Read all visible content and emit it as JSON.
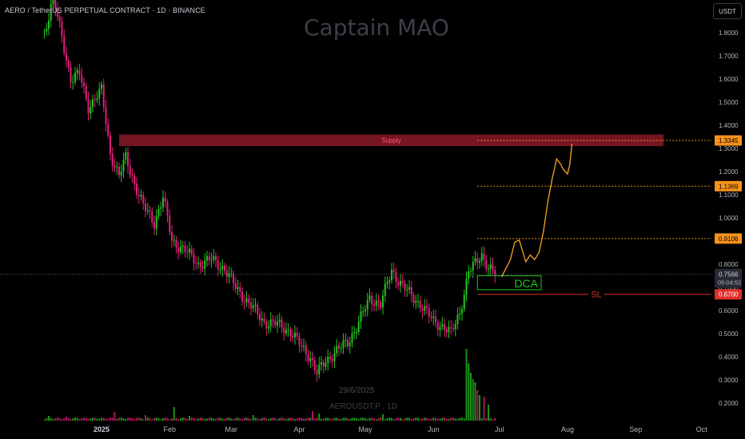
{
  "header": {
    "symbol_title": "AERO / TetherUS PERPETUAL CONTRACT · 1D · BINANCE",
    "watermark": "Captain MAO",
    "currency": "USDT"
  },
  "overlay": {
    "date_text": "29/6/2025",
    "ticker_text": "AEROUSDT.P , 1D"
  },
  "colors": {
    "background": "#000000",
    "up": "#22c41e",
    "down": "#e0207a",
    "supply_zone": "#8a1a28",
    "supply_text": "#ff5a78",
    "target_line": "#f7931a",
    "projection": "#f5a623",
    "stop_loss": "#e0302a",
    "dca": "#22c41e",
    "price_tag": "#262a33"
  },
  "chart_data": {
    "type": "candlestick",
    "symbol": "AERO / TetherUS PERPETUAL CONTRACT",
    "timeframe": "1D",
    "exchange": "BINANCE",
    "y_ticks": [
      1.8,
      1.7,
      1.6,
      1.5,
      1.4,
      1.3,
      1.2,
      1.1,
      1.0,
      0.9,
      0.8,
      0.7,
      0.6,
      0.5,
      0.4,
      0.3,
      0.2
    ],
    "y_tick_labels": [
      "1.8000",
      "1.7000",
      "1.6000",
      "1.5000",
      "1.4000",
      "1.3000",
      "1.2000",
      "1.1000",
      "1.0000",
      "0.9000",
      "0.8000",
      "0.7000",
      "0.6000",
      "0.5000",
      "0.4000",
      "0.3000",
      "0.2000"
    ],
    "x_labels": [
      {
        "label": "2025",
        "date": "2025-01-01",
        "bold": true
      },
      {
        "label": "Feb",
        "date": "2025-02-01"
      },
      {
        "label": "Mar",
        "date": "2025-03-01"
      },
      {
        "label": "Apr",
        "date": "2025-04-01"
      },
      {
        "label": "May",
        "date": "2025-05-01"
      },
      {
        "label": "Jun",
        "date": "2025-06-01"
      },
      {
        "label": "Jul",
        "date": "2025-07-01"
      },
      {
        "label": "Aug",
        "date": "2025-08-01"
      },
      {
        "label": "Sep",
        "date": "2025-09-01"
      },
      {
        "label": "Oct",
        "date": "2025-10-01"
      }
    ],
    "price_path": [
      [
        "2024-12-06",
        1.8
      ],
      [
        "2024-12-10",
        1.95
      ],
      [
        "2024-12-14",
        1.78
      ],
      [
        "2024-12-18",
        1.6
      ],
      [
        "2024-12-22",
        1.62
      ],
      [
        "2024-12-26",
        1.48
      ],
      [
        "2025-01-01",
        1.55
      ],
      [
        "2025-01-05",
        1.28
      ],
      [
        "2025-01-09",
        1.18
      ],
      [
        "2025-01-12",
        1.26
      ],
      [
        "2025-01-16",
        1.15
      ],
      [
        "2025-01-20",
        1.05
      ],
      [
        "2025-01-25",
        0.98
      ],
      [
        "2025-01-29",
        1.09
      ],
      [
        "2025-02-02",
        0.9
      ],
      [
        "2025-02-08",
        0.86
      ],
      [
        "2025-02-14",
        0.8
      ],
      [
        "2025-02-20",
        0.82
      ],
      [
        "2025-02-26",
        0.78
      ],
      [
        "2025-03-03",
        0.7
      ],
      [
        "2025-03-10",
        0.62
      ],
      [
        "2025-03-16",
        0.55
      ],
      [
        "2025-03-22",
        0.54
      ],
      [
        "2025-03-28",
        0.51
      ],
      [
        "2025-04-02",
        0.44
      ],
      [
        "2025-04-06",
        0.4
      ],
      [
        "2025-04-09",
        0.33
      ],
      [
        "2025-04-13",
        0.38
      ],
      [
        "2025-04-18",
        0.43
      ],
      [
        "2025-04-23",
        0.46
      ],
      [
        "2025-04-28",
        0.55
      ],
      [
        "2025-05-03",
        0.65
      ],
      [
        "2025-05-08",
        0.63
      ],
      [
        "2025-05-13",
        0.77
      ],
      [
        "2025-05-17",
        0.72
      ],
      [
        "2025-05-22",
        0.66
      ],
      [
        "2025-05-27",
        0.62
      ],
      [
        "2025-06-01",
        0.55
      ],
      [
        "2025-06-06",
        0.53
      ],
      [
        "2025-06-09",
        0.5
      ],
      [
        "2025-06-13",
        0.59
      ],
      [
        "2025-06-17",
        0.77
      ],
      [
        "2025-06-20",
        0.8
      ],
      [
        "2025-06-23",
        0.84
      ],
      [
        "2025-06-26",
        0.79
      ],
      [
        "2025-06-29",
        0.7566
      ]
    ],
    "volume_bars": [
      [
        "2024-12-08",
        0.3
      ],
      [
        "2024-12-16",
        0.25
      ],
      [
        "2025-01-07",
        0.55
      ],
      [
        "2025-01-21",
        0.35
      ],
      [
        "2025-02-03",
        0.85
      ],
      [
        "2025-02-10",
        0.3
      ],
      [
        "2025-03-11",
        0.35
      ],
      [
        "2025-04-07",
        0.6
      ],
      [
        "2025-04-10",
        0.45
      ],
      [
        "2025-05-09",
        0.4
      ],
      [
        "2025-06-16",
        4.5
      ],
      [
        "2025-06-17",
        3.6
      ],
      [
        "2025-06-18",
        3.0
      ],
      [
        "2025-06-19",
        2.6
      ],
      [
        "2025-06-20",
        2.4
      ],
      [
        "2025-06-21",
        1.9
      ],
      [
        "2025-06-22",
        1.6
      ],
      [
        "2025-06-24",
        1.5
      ],
      [
        "2025-06-26",
        1.0
      ]
    ],
    "last_price": {
      "value": 0.7566,
      "label": "0.7566",
      "countdown": "05:04:52"
    },
    "supply_zone": {
      "label": "Supply",
      "top": 1.36,
      "bottom": 1.31,
      "start": "2025-01-09",
      "end": "2025-10-01"
    },
    "target_levels": [
      {
        "label": "1.3345",
        "value": 1.3345,
        "start": "2025-06-21"
      },
      {
        "label": "1.1369",
        "value": 1.1369,
        "start": "2025-06-21"
      },
      {
        "label": "0.9106",
        "value": 0.9106,
        "start": "2025-06-21"
      }
    ],
    "stop_loss": {
      "label": "SL",
      "price_label": "0.6700",
      "value": 0.67,
      "start": "2025-06-21"
    },
    "dca_zone": {
      "label": "DCA",
      "top": 0.75,
      "bottom": 0.69,
      "start": "2025-06-21",
      "end": "2025-07-20"
    },
    "projection_path": [
      [
        "2025-07-02",
        0.745
      ],
      [
        "2025-07-06",
        0.82
      ],
      [
        "2025-07-08",
        0.895
      ],
      [
        "2025-07-10",
        0.905
      ],
      [
        "2025-07-13",
        0.81
      ],
      [
        "2025-07-15",
        0.84
      ],
      [
        "2025-07-17",
        0.82
      ],
      [
        "2025-07-19",
        0.85
      ],
      [
        "2025-07-21",
        0.94
      ],
      [
        "2025-07-23",
        1.07
      ],
      [
        "2025-07-25",
        1.17
      ],
      [
        "2025-07-26",
        1.21
      ],
      [
        "2025-07-27",
        1.255
      ],
      [
        "2025-07-29",
        1.23
      ],
      [
        "2025-07-30",
        1.21
      ],
      [
        "2025-08-01",
        1.19
      ],
      [
        "2025-08-02",
        1.23
      ],
      [
        "2025-08-03",
        1.32
      ]
    ],
    "grid": false,
    "legend": "none"
  }
}
